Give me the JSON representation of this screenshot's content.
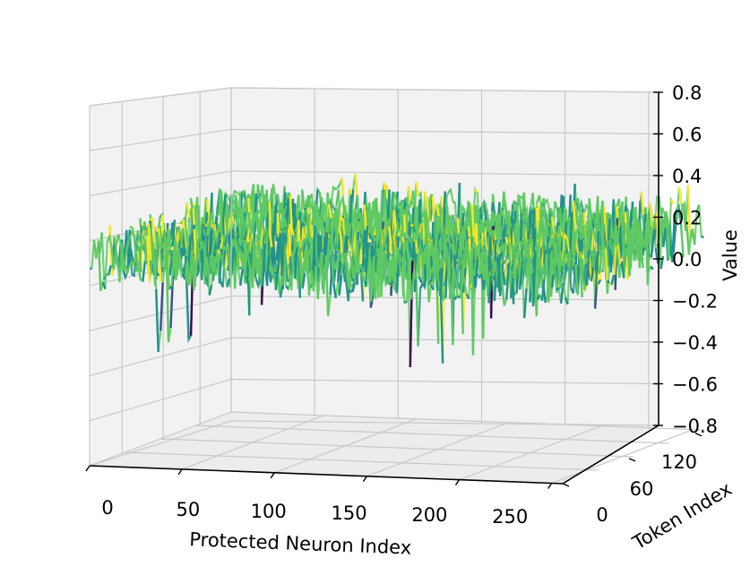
{
  "chart_data": {
    "type": "surface",
    "xlabel": "Protected Neuron Index",
    "ylabel": "Token Index",
    "zlabel": "Value",
    "x_ticks": [
      0,
      50,
      100,
      150,
      200,
      250
    ],
    "y_ticks": [
      0,
      60,
      120
    ],
    "z_ticks": [
      "0.8",
      "0.6",
      "0.4",
      "0.2",
      "0.0",
      "−0.2",
      "−0.4",
      "−0.6",
      "−0.8"
    ],
    "xlim": [
      0,
      256
    ],
    "ylim": [
      0,
      128
    ],
    "zlim": [
      -0.8,
      0.8
    ],
    "grid": true,
    "colormap": "viridis",
    "colormap_stops": [
      "#440154",
      "#3b528b",
      "#21918c",
      "#5ec962",
      "#fde725"
    ],
    "surface_summary": {
      "typical_range": [
        -0.2,
        0.15
      ],
      "min_spikes": [
        {
          "x": 38,
          "value": -0.45
        },
        {
          "x": 125,
          "value": -0.3
        },
        {
          "x": 168,
          "value": -0.55
        },
        {
          "x": 236,
          "value": -0.3
        }
      ],
      "max_spikes": [
        {
          "x": 2,
          "value": 0.18
        },
        {
          "x": 98,
          "value": 0.15
        },
        {
          "x": 200,
          "value": 0.14
        }
      ]
    }
  }
}
